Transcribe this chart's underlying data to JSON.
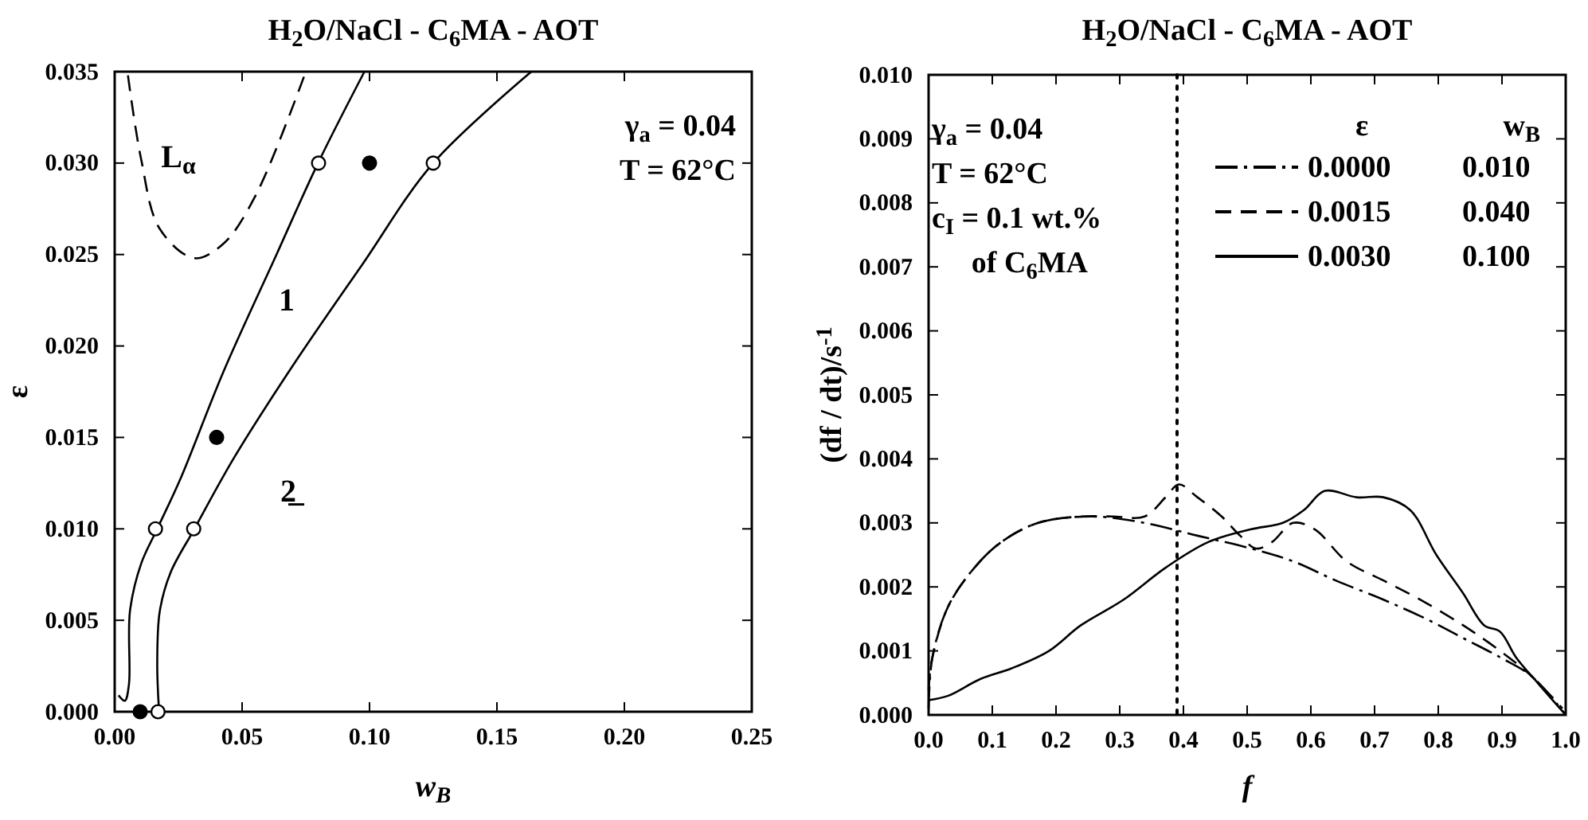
{
  "chart_data": [
    {
      "type": "line",
      "title": "H$_{2}$O/NaCl - C$_{6}$MA - AOT",
      "xlabel": "w$_{B}$",
      "ylabel": "ε",
      "xlim": [
        0,
        0.25
      ],
      "ylim": [
        0,
        0.035
      ],
      "xticks": [
        {
          "value": 0,
          "label": "0.00"
        },
        {
          "value": 0.05,
          "label": "0.05"
        },
        {
          "value": 0.1,
          "label": "0.10"
        },
        {
          "value": 0.15,
          "label": "0.15"
        },
        {
          "value": 0.2,
          "label": "0.20"
        },
        {
          "value": 0.25,
          "label": "0.25"
        }
      ],
      "yticks": [
        {
          "value": 0,
          "label": "0.000"
        },
        {
          "value": 0.005,
          "label": "0.005"
        },
        {
          "value": 0.01,
          "label": "0.010"
        },
        {
          "value": 0.015,
          "label": "0.015"
        },
        {
          "value": 0.02,
          "label": "0.020"
        },
        {
          "value": 0.025,
          "label": "0.025"
        },
        {
          "value": 0.03,
          "label": "0.030"
        },
        {
          "value": 0.035,
          "label": "0.035"
        }
      ],
      "series": [
        {
          "color": "#000000",
          "line_style": "solid",
          "x": [
            0.0015,
            0.004,
            0.0056,
            0.006,
            0.0104,
            0.0167,
            0.026,
            0.0427,
            0.0635,
            0.0798,
            0.098
          ],
          "values": [
            0.0009,
            0.0006,
            0.0015,
            0.0055,
            0.0081,
            0.01,
            0.0128,
            0.0186,
            0.025,
            0.03,
            0.035
          ]
        },
        {
          "color": "#000000",
          "line_style": "solid",
          "x": [
            0.0173,
            0.0167,
            0.0177,
            0.0219,
            0.0313,
            0.0469,
            0.0698,
            0.0969,
            0.125,
            0.1635
          ],
          "values": [
            0.0003,
            0.0026,
            0.0055,
            0.0076,
            0.01,
            0.0139,
            0.0189,
            0.0244,
            0.03,
            0.035
          ]
        },
        {
          "color": "#000000",
          "line_style": "dashed",
          "x": [
            0.0052,
            0.0104,
            0.0177,
            0.0313,
            0.0427,
            0.0552,
            0.075
          ],
          "values": [
            0.0348,
            0.0302,
            0.0264,
            0.0248,
            0.0256,
            0.0282,
            0.035
          ]
        },
        {
          "type": "scatter",
          "color": "#ffffff",
          "marker": "circle",
          "x": [
            0.017,
            0.016,
            0.031,
            0.08,
            0.125
          ],
          "values": [
            0,
            0.01,
            0.01,
            0.03,
            0.03
          ]
        },
        {
          "type": "scatter",
          "color": "#000000",
          "marker": "circle",
          "x": [
            0.01,
            0.04,
            0.1
          ],
          "values": [
            0,
            0.015,
            0.03
          ]
        }
      ],
      "annotations": [
        "L$_{α}$",
        "1",
        "2̲",
        "γ$_{a}$ =  0.04",
        "T = 62°C"
      ]
    },
    {
      "type": "line",
      "title": "H$_{2}$O/NaCl - C$_{6}$MA - AOT",
      "xlabel": "f",
      "ylabel": "(df / dt)/s$^{-1}$",
      "xlim": [
        0,
        1
      ],
      "ylim": [
        0,
        0.01
      ],
      "xticks": [
        {
          "value": 0,
          "label": "0.0"
        },
        {
          "value": 0.1,
          "label": "0.1"
        },
        {
          "value": 0.2,
          "label": "0.2"
        },
        {
          "value": 0.3,
          "label": "0.3"
        },
        {
          "value": 0.4,
          "label": "0.4"
        },
        {
          "value": 0.5,
          "label": "0.5"
        },
        {
          "value": 0.6,
          "label": "0.6"
        },
        {
          "value": 0.7,
          "label": "0.7"
        },
        {
          "value": 0.8,
          "label": "0.8"
        },
        {
          "value": 0.9,
          "label": "0.9"
        },
        {
          "value": 1,
          "label": "1.0"
        }
      ],
      "yticks": [
        {
          "value": 0,
          "label": "0.000"
        },
        {
          "value": 0.001,
          "label": "0.001"
        },
        {
          "value": 0.002,
          "label": "0.002"
        },
        {
          "value": 0.003,
          "label": "0.003"
        },
        {
          "value": 0.004,
          "label": "0.004"
        },
        {
          "value": 0.005,
          "label": "0.005"
        },
        {
          "value": 0.006,
          "label": "0.006"
        },
        {
          "value": 0.007,
          "label": "0.007"
        },
        {
          "value": 0.008,
          "label": "0.008"
        },
        {
          "value": 0.009,
          "label": "0.009"
        },
        {
          "value": 0.01,
          "label": "0.010"
        }
      ],
      "legend": "top right",
      "legend_title": "ε w$_{B}$",
      "series": [
        {
          "name": "0.0000 0.010",
          "color": "#000000",
          "line_style": "dashdot",
          "x": [
            0,
            0.006,
            0.031,
            0.072,
            0.114,
            0.172,
            0.256,
            0.339,
            0.422,
            0.506,
            0.572,
            0.639,
            0.714,
            0.781,
            0.839,
            0.897,
            0.947,
            1
          ],
          "values": [
            0.0001,
            0.0009,
            0.0017,
            0.0023,
            0.0027,
            0.003,
            0.0031,
            0.003,
            0.0028,
            0.0026,
            0.0024,
            0.0021,
            0.0018,
            0.0015,
            0.0012,
            0.0009,
            0.0006,
            0
          ]
        },
        {
          "name": "0.0015 0.040",
          "color": "#000000",
          "line_style": "dashed",
          "x": [
            0,
            0.006,
            0.031,
            0.072,
            0.114,
            0.172,
            0.239,
            0.289,
            0.339,
            0.372,
            0.393,
            0.422,
            0.46,
            0.489,
            0.514,
            0.539,
            0.572,
            0.606,
            0.656,
            0.714,
            0.772,
            0.839,
            0.897,
            0.947,
            0.995
          ],
          "values": [
            0.0004,
            0.0009,
            0.0017,
            0.0023,
            0.0027,
            0.003,
            0.0031,
            0.0031,
            0.0031,
            0.0034,
            0.0036,
            0.0034,
            0.0031,
            0.0028,
            0.0026,
            0.0027,
            0.003,
            0.0029,
            0.0024,
            0.0021,
            0.0018,
            0.0014,
            0.001,
            0.0006,
            0.0001
          ]
        },
        {
          "name": "0.0030 0.100",
          "color": "#000000",
          "line_style": "solid",
          "x": [
            0,
            0.031,
            0.081,
            0.131,
            0.189,
            0.239,
            0.306,
            0.372,
            0.439,
            0.506,
            0.556,
            0.589,
            0.622,
            0.672,
            0.714,
            0.756,
            0.797,
            0.839,
            0.872,
            0.897,
            0.922,
            0.956,
            1
          ],
          "values": [
            0.00023,
            0.0003,
            0.00056,
            0.00073,
            0.001,
            0.0014,
            0.0018,
            0.0023,
            0.0027,
            0.0029,
            0.003,
            0.0032,
            0.0035,
            0.0034,
            0.0034,
            0.0032,
            0.0025,
            0.0019,
            0.0014,
            0.0013,
            0.0009,
            0.0005,
            0
          ]
        }
      ],
      "ref_lines": [
        {
          "axis": "x",
          "value": 0.39,
          "line_style": "dotted"
        }
      ],
      "annotations": [
        "γ$_{a}$ =  0.04",
        "T = 62°C",
        "c$_{I}$ = 0.1 wt.%",
        "of C$_{6}$MA"
      ]
    }
  ]
}
